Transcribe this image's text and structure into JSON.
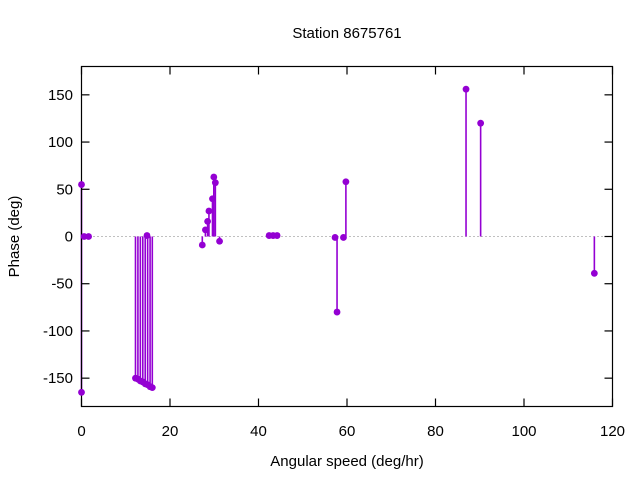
{
  "window": {
    "background": "#ffffff"
  },
  "chart_data": {
    "type": "stem",
    "title": "Station 8675761",
    "xlabel": "Angular speed (deg/hr)",
    "ylabel": "Phase (deg)",
    "xlim": [
      0,
      120
    ],
    "ylim": [
      -180,
      180
    ],
    "xticks": [
      0,
      20,
      40,
      60,
      80,
      100,
      120
    ],
    "yticks": [
      -150,
      -100,
      -50,
      0,
      50,
      100,
      150
    ],
    "grid": false,
    "legend": "none",
    "series_color": "#9400D3",
    "border_color": "#000000",
    "zero_axis_color": "#808080",
    "zero_axis_style": "dotted",
    "points": [
      [
        0,
        55
      ],
      [
        0.6,
        0
      ],
      [
        1.6,
        0
      ],
      [
        0,
        -165
      ],
      [
        12.2,
        -150
      ],
      [
        12.75,
        -151
      ],
      [
        13.3,
        -153
      ],
      [
        13.85,
        -154
      ],
      [
        14.4,
        -156
      ],
      [
        14.95,
        -157
      ],
      [
        15.5,
        -159
      ],
      [
        16.0,
        -160
      ],
      [
        14.8,
        1
      ],
      [
        27.3,
        -9
      ],
      [
        28.0,
        7
      ],
      [
        28.5,
        16
      ],
      [
        28.8,
        27
      ],
      [
        29.6,
        40
      ],
      [
        29.9,
        63
      ],
      [
        30.25,
        57
      ],
      [
        31.2,
        -5
      ],
      [
        42.4,
        1
      ],
      [
        43.3,
        1
      ],
      [
        44.2,
        1
      ],
      [
        57.3,
        -1
      ],
      [
        57.75,
        -80
      ],
      [
        59.2,
        -1
      ],
      [
        59.75,
        58
      ],
      [
        86.9,
        156
      ],
      [
        90.2,
        120
      ],
      [
        115.9,
        -39
      ]
    ]
  }
}
